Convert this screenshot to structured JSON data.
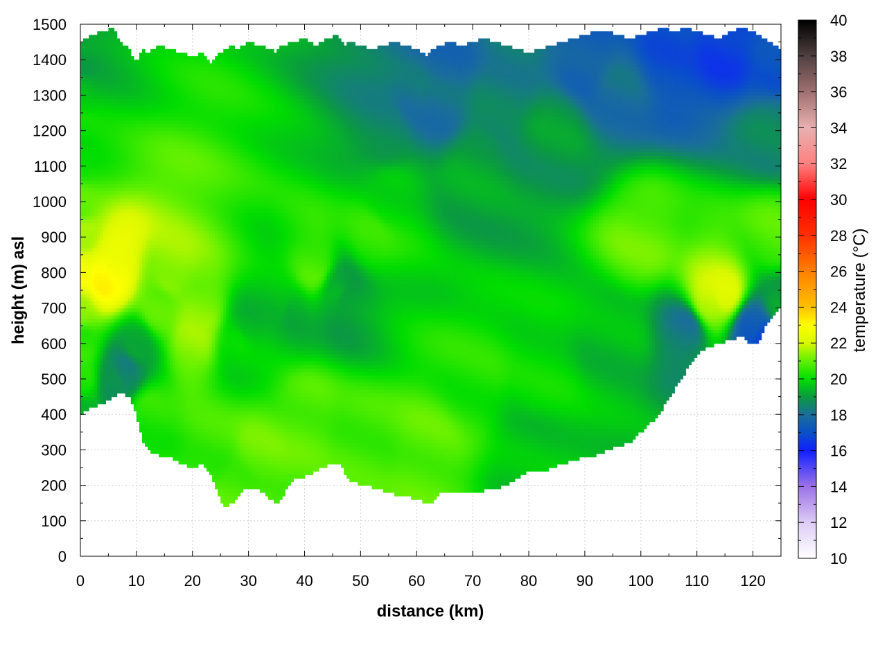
{
  "chart_data": {
    "type": "heatmap",
    "title": "",
    "xlabel": "distance (km)",
    "ylabel": "height (m) asl",
    "xlim": [
      0,
      125
    ],
    "ylim": [
      0,
      1500
    ],
    "x_ticks": [
      0,
      10,
      20,
      30,
      40,
      50,
      60,
      70,
      80,
      90,
      100,
      110,
      120
    ],
    "y_ticks": [
      0,
      100,
      200,
      300,
      400,
      500,
      600,
      700,
      800,
      900,
      1000,
      1100,
      1200,
      1300,
      1400,
      1500
    ],
    "grid": true,
    "colorbar": {
      "label": "temperature (°C)",
      "range": [
        10,
        40
      ],
      "ticks": [
        10,
        12,
        14,
        16,
        18,
        20,
        22,
        24,
        26,
        28,
        30,
        32,
        34,
        36,
        38,
        40
      ],
      "stops": [
        {
          "value": 10,
          "color": "#ffffff"
        },
        {
          "value": 12,
          "color": "#ddccf5"
        },
        {
          "value": 14,
          "color": "#9b72e8"
        },
        {
          "value": 16,
          "color": "#1020ff"
        },
        {
          "value": 17,
          "color": "#0a50c8"
        },
        {
          "value": 18,
          "color": "#1a6e9a"
        },
        {
          "value": 19,
          "color": "#0a9a40"
        },
        {
          "value": 20,
          "color": "#00dd00"
        },
        {
          "value": 21,
          "color": "#60f000"
        },
        {
          "value": 22,
          "color": "#d8f800"
        },
        {
          "value": 23,
          "color": "#ffff00"
        },
        {
          "value": 24,
          "color": "#ffc000"
        },
        {
          "value": 26,
          "color": "#ff8000"
        },
        {
          "value": 28,
          "color": "#ff3000"
        },
        {
          "value": 30,
          "color": "#ff0000"
        },
        {
          "value": 32,
          "color": "#ff8080"
        },
        {
          "value": 34,
          "color": "#e8b0b0"
        },
        {
          "value": 36,
          "color": "#a07070"
        },
        {
          "value": 38,
          "color": "#504040"
        },
        {
          "value": 40,
          "color": "#000000"
        }
      ]
    },
    "terrain": {
      "x": [
        0,
        2,
        4,
        6,
        7,
        8,
        9,
        10,
        11,
        12,
        14,
        16,
        18,
        20,
        22,
        23,
        24,
        25,
        26,
        27,
        28,
        30,
        32,
        34,
        35,
        36,
        38,
        40,
        42,
        44,
        46,
        47,
        48,
        50,
        52,
        54,
        56,
        58,
        60,
        61,
        62,
        63,
        64,
        66,
        68,
        70,
        72,
        74,
        76,
        78,
        80,
        82,
        84,
        86,
        88,
        90,
        92,
        94,
        96,
        98,
        100,
        102,
        104,
        106,
        108,
        110,
        112,
        114,
        116,
        118,
        120,
        121,
        122,
        123,
        124,
        125
      ],
      "y": [
        400,
        420,
        430,
        450,
        460,
        455,
        445,
        400,
        330,
        300,
        285,
        280,
        260,
        250,
        260,
        240,
        200,
        160,
        140,
        150,
        170,
        195,
        185,
        160,
        145,
        165,
        220,
        225,
        240,
        255,
        265,
        240,
        215,
        200,
        195,
        185,
        175,
        170,
        160,
        155,
        145,
        150,
        175,
        180,
        180,
        185,
        185,
        190,
        200,
        220,
        240,
        235,
        250,
        260,
        270,
        280,
        285,
        300,
        310,
        320,
        350,
        380,
        420,
        470,
        520,
        570,
        590,
        600,
        610,
        620,
        595,
        600,
        640,
        670,
        690,
        700
      ],
      "top": [
        1450,
        1470,
        1480,
        1490,
        1450,
        1440,
        1420,
        1390,
        1430,
        1420,
        1440,
        1430,
        1420,
        1410,
        1420,
        1390,
        1400,
        1420,
        1430,
        1440,
        1430,
        1450,
        1440,
        1430,
        1420,
        1440,
        1450,
        1460,
        1440,
        1460,
        1470,
        1440,
        1450,
        1440,
        1430,
        1440,
        1450,
        1440,
        1430,
        1420,
        1410,
        1430,
        1440,
        1450,
        1440,
        1450,
        1460,
        1450,
        1440,
        1430,
        1420,
        1430,
        1440,
        1450,
        1460,
        1470,
        1480,
        1480,
        1470,
        1460,
        1470,
        1480,
        1490,
        1480,
        1490,
        1480,
        1470,
        1460,
        1480,
        1490,
        1480,
        1470,
        1460,
        1450,
        1440,
        1430
      ]
    },
    "anchors": [
      {
        "x": 0,
        "h": 400,
        "t": 19.6
      },
      {
        "x": 0,
        "h": 500,
        "t": 20.2
      },
      {
        "x": 0,
        "h": 600,
        "t": 20.5
      },
      {
        "x": 0,
        "h": 700,
        "t": 21.5
      },
      {
        "x": 0,
        "h": 800,
        "t": 22.6
      },
      {
        "x": 0,
        "h": 900,
        "t": 21.8
      },
      {
        "x": 0,
        "h": 1000,
        "t": 20.8
      },
      {
        "x": 0,
        "h": 1100,
        "t": 20.3
      },
      {
        "x": 0,
        "h": 1200,
        "t": 20.0
      },
      {
        "x": 0,
        "h": 1300,
        "t": 19.6
      },
      {
        "x": 0,
        "h": 1400,
        "t": 19.2
      },
      {
        "x": 0,
        "h": 1500,
        "t": 18.9
      },
      {
        "x": 4,
        "h": 780,
        "t": 23.0
      },
      {
        "x": 6,
        "h": 820,
        "t": 22.8
      },
      {
        "x": 8,
        "h": 520,
        "t": 18.3
      },
      {
        "x": 6,
        "h": 500,
        "t": 18.6
      },
      {
        "x": 10,
        "h": 600,
        "t": 19.4
      },
      {
        "x": 12,
        "h": 400,
        "t": 20.4
      },
      {
        "x": 14,
        "h": 700,
        "t": 20.8
      },
      {
        "x": 16,
        "h": 800,
        "t": 21.5
      },
      {
        "x": 20,
        "h": 600,
        "t": 21.4
      },
      {
        "x": 22,
        "h": 700,
        "t": 21.3
      },
      {
        "x": 24,
        "h": 300,
        "t": 20.6
      },
      {
        "x": 28,
        "h": 200,
        "t": 20.8
      },
      {
        "x": 28,
        "h": 600,
        "t": 19.8
      },
      {
        "x": 30,
        "h": 650,
        "t": 19.5
      },
      {
        "x": 32,
        "h": 300,
        "t": 21.0
      },
      {
        "x": 35,
        "h": 700,
        "t": 19.6
      },
      {
        "x": 38,
        "h": 680,
        "t": 19.4
      },
      {
        "x": 40,
        "h": 400,
        "t": 20.9
      },
      {
        "x": 42,
        "h": 820,
        "t": 20.8
      },
      {
        "x": 46,
        "h": 750,
        "t": 19.2
      },
      {
        "x": 47,
        "h": 730,
        "t": 18.9
      },
      {
        "x": 50,
        "h": 300,
        "t": 20.7
      },
      {
        "x": 52,
        "h": 900,
        "t": 20.4
      },
      {
        "x": 55,
        "h": 1000,
        "t": 20.0
      },
      {
        "x": 55,
        "h": 1200,
        "t": 18.6
      },
      {
        "x": 60,
        "h": 1300,
        "t": 18.1
      },
      {
        "x": 64,
        "h": 1280,
        "t": 18.0
      },
      {
        "x": 65,
        "h": 1400,
        "t": 17.8
      },
      {
        "x": 62,
        "h": 300,
        "t": 20.9
      },
      {
        "x": 70,
        "h": 500,
        "t": 20.3
      },
      {
        "x": 70,
        "h": 1100,
        "t": 19.2
      },
      {
        "x": 75,
        "h": 1300,
        "t": 18.4
      },
      {
        "x": 80,
        "h": 300,
        "t": 19.6
      },
      {
        "x": 82,
        "h": 500,
        "t": 20.0
      },
      {
        "x": 85,
        "h": 1200,
        "t": 19.0
      },
      {
        "x": 90,
        "h": 1400,
        "t": 17.5
      },
      {
        "x": 95,
        "h": 600,
        "t": 19.5
      },
      {
        "x": 96,
        "h": 1300,
        "t": 18.0
      },
      {
        "x": 100,
        "h": 900,
        "t": 21.0
      },
      {
        "x": 105,
        "h": 1400,
        "t": 17.0
      },
      {
        "x": 108,
        "h": 640,
        "t": 18.2
      },
      {
        "x": 112,
        "h": 720,
        "t": 21.8
      },
      {
        "x": 115,
        "h": 740,
        "t": 22.0
      },
      {
        "x": 115,
        "h": 1450,
        "t": 16.6
      },
      {
        "x": 120,
        "h": 650,
        "t": 17.5
      },
      {
        "x": 122,
        "h": 620,
        "t": 17.0
      },
      {
        "x": 124,
        "h": 900,
        "t": 20.8
      },
      {
        "x": 124,
        "h": 1200,
        "t": 18.5
      },
      {
        "x": 125,
        "h": 1400,
        "t": 17.0
      },
      {
        "x": 125,
        "h": 700,
        "t": 19.0
      }
    ]
  }
}
